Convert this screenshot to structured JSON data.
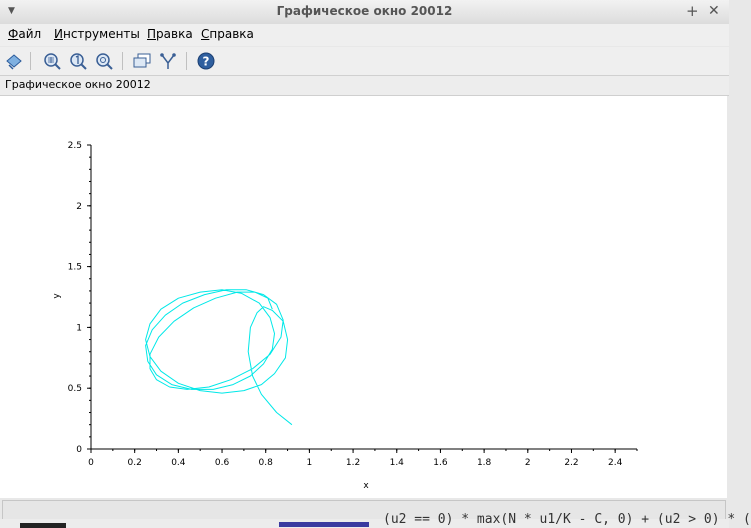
{
  "window": {
    "title": "Графическое окно 20012"
  },
  "menu": [
    {
      "pre": "",
      "u": "Ф",
      "rest": "айл"
    },
    {
      "pre": "",
      "u": "И",
      "rest": "нструменты"
    },
    {
      "pre": "",
      "u": "П",
      "rest": "равка"
    },
    {
      "pre": "",
      "u": "С",
      "rest": "правка"
    }
  ],
  "toolbar": {
    "buttons": [
      "rotate-icon",
      "zoom-grid-icon",
      "zoom-one-icon",
      "zoom-search-icon",
      "datatip-icon",
      "pivot-icon",
      "help-icon"
    ]
  },
  "infobar": {
    "text": "Графическое окно 20012"
  },
  "background_text": "(u2 == 0) * max(N * u1/K - C, 0) + (u2 > 0) * (",
  "chart_data": {
    "type": "line",
    "xlabel": "x",
    "ylabel": "y",
    "xlim": [
      0,
      2.5
    ],
    "ylim": [
      0,
      2.5
    ],
    "xticks": [
      "0",
      "0.2",
      "0.4",
      "0.6",
      "0.8",
      "1",
      "1.2",
      "1.4",
      "1.6",
      "1.8",
      "2",
      "2.2",
      "2.4"
    ],
    "yticks": [
      "0",
      "0.5",
      "1",
      "1.5",
      "2",
      "2.5"
    ],
    "line_color": "#00e8e8",
    "series": [
      {
        "x": [
          0.92,
          0.85,
          0.78,
          0.74,
          0.72,
          0.73,
          0.76,
          0.79,
          0.83,
          0.88,
          0.9,
          0.89,
          0.84,
          0.78,
          0.7,
          0.6,
          0.5,
          0.4,
          0.32,
          0.27,
          0.25,
          0.27,
          0.32,
          0.4,
          0.5,
          0.6,
          0.69,
          0.77,
          0.82,
          0.84,
          0.83,
          0.79,
          0.73,
          0.65,
          0.56,
          0.46,
          0.37,
          0.3,
          0.26,
          0.25,
          0.28,
          0.34,
          0.42,
          0.52,
          0.62,
          0.71,
          0.79,
          0.85,
          0.88,
          0.87,
          0.82,
          0.74,
          0.64,
          0.54,
          0.44,
          0.36,
          0.3,
          0.27,
          0.27,
          0.31,
          0.38,
          0.47,
          0.57,
          0.67,
          0.75,
          0.81,
          0.83
        ],
        "y": [
          0.2,
          0.3,
          0.45,
          0.6,
          0.8,
          1.0,
          1.12,
          1.17,
          1.14,
          1.05,
          0.9,
          0.75,
          0.62,
          0.53,
          0.48,
          0.46,
          0.48,
          0.54,
          0.64,
          0.76,
          0.9,
          1.03,
          1.15,
          1.24,
          1.29,
          1.31,
          1.28,
          1.2,
          1.08,
          0.95,
          0.82,
          0.7,
          0.6,
          0.53,
          0.49,
          0.49,
          0.53,
          0.61,
          0.72,
          0.85,
          0.98,
          1.1,
          1.2,
          1.27,
          1.31,
          1.31,
          1.27,
          1.19,
          1.06,
          0.92,
          0.78,
          0.66,
          0.57,
          0.51,
          0.49,
          0.51,
          0.57,
          0.66,
          0.78,
          0.92,
          1.05,
          1.16,
          1.24,
          1.29,
          1.29,
          1.24,
          1.15
        ]
      }
    ]
  }
}
